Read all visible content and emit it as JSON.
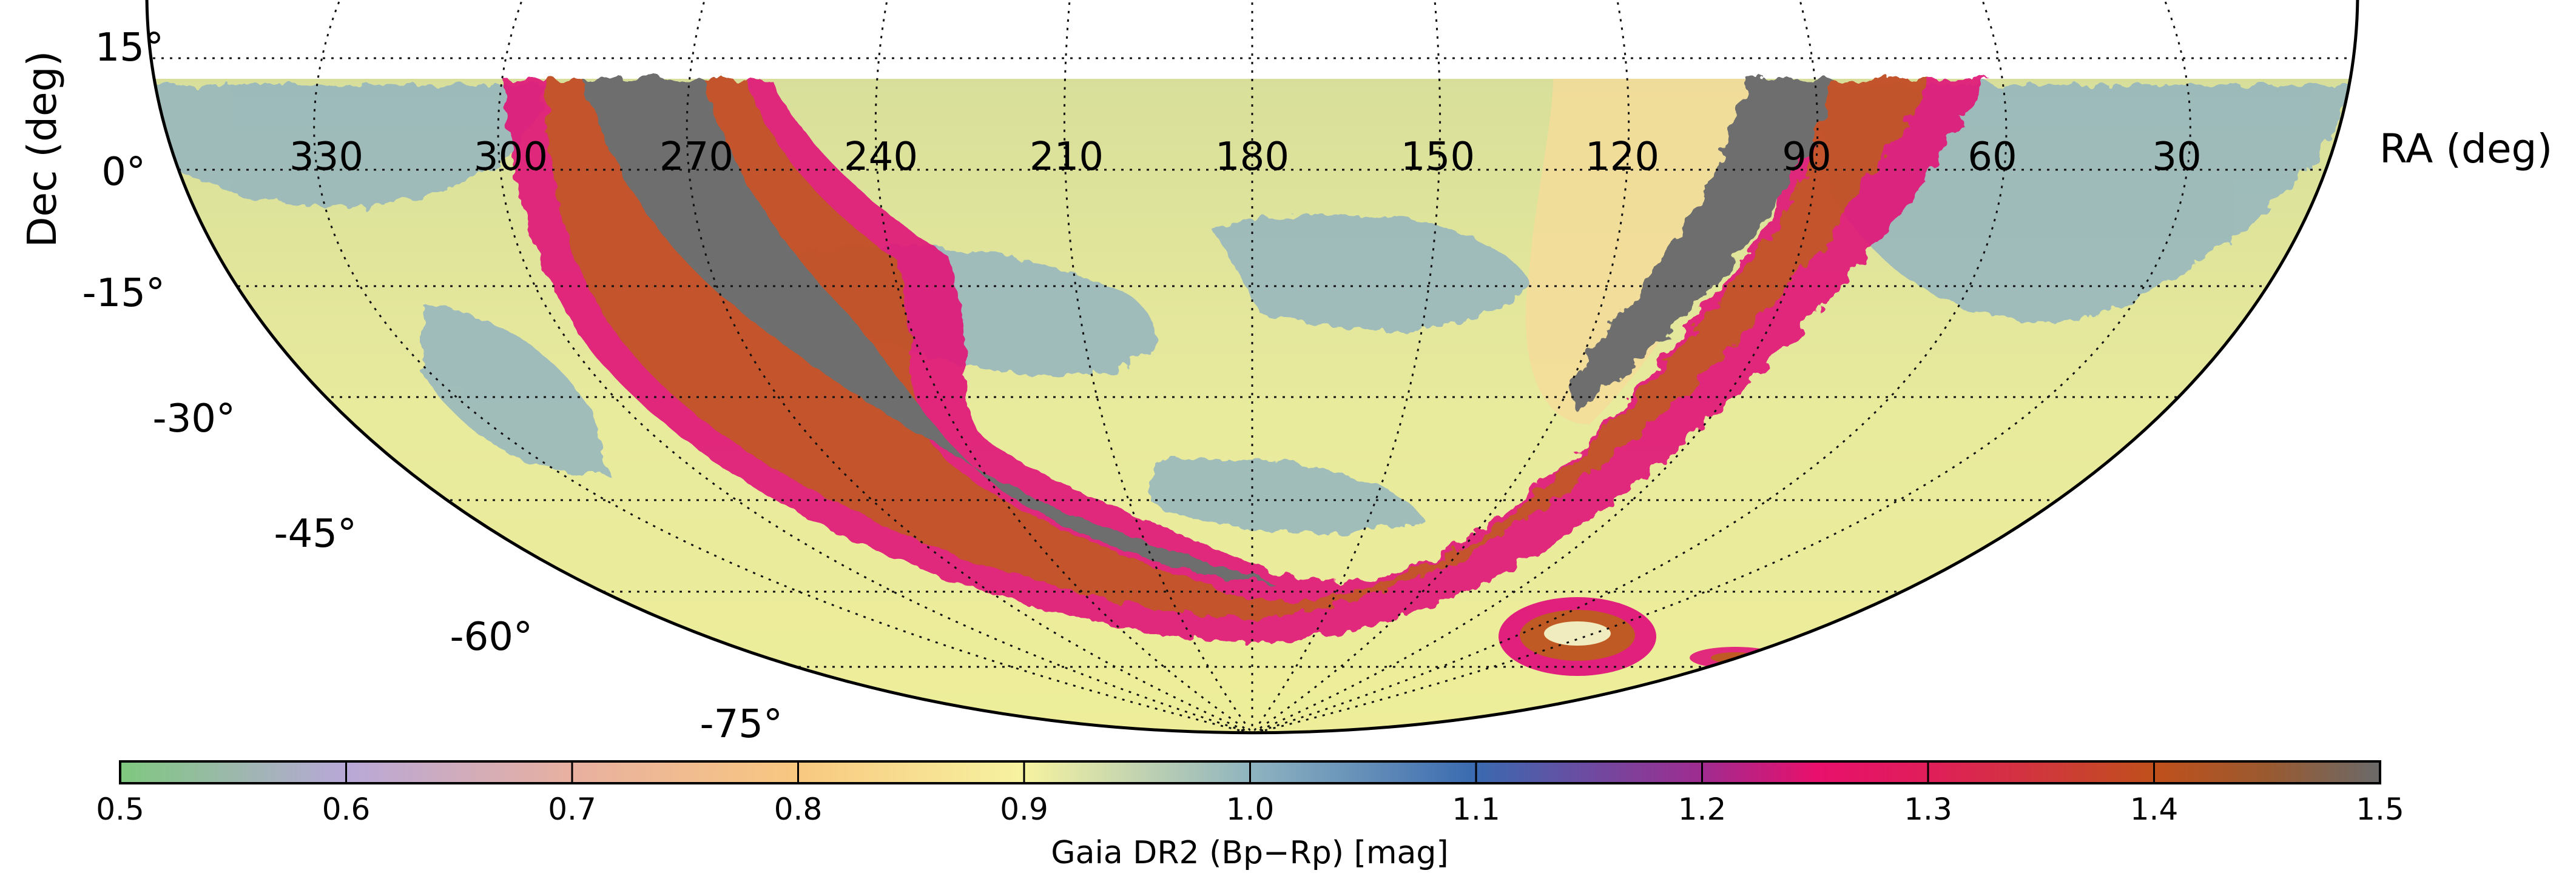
{
  "map": {
    "projection": "Aitoff (partial sky)",
    "ra_axis_label": "RA (deg)",
    "dec_axis_label": "Dec (deg)",
    "ra_ticks": [
      "330",
      "300",
      "270",
      "240",
      "210",
      "180",
      "150",
      "120",
      "90",
      "60",
      "30"
    ],
    "dec_ticks": [
      "15°",
      "0°",
      "-15°",
      "-30°",
      "-45°",
      "-60°",
      "-75°"
    ],
    "dec_coverage_deg": [
      -90,
      10
    ],
    "grid": "dotted",
    "features": [
      "galactic-plane-reddening-band",
      "large-magellanic-cloud",
      "small-magellanic-cloud"
    ]
  },
  "colorbar": {
    "label": "Gaia DR2 (Bp−Rp) [mag]",
    "range": [
      0.5,
      1.5
    ],
    "ticks": [
      "0.5",
      "0.6",
      "0.7",
      "0.8",
      "0.9",
      "1.0",
      "1.1",
      "1.2",
      "1.3",
      "1.4",
      "1.5"
    ],
    "color_stops": [
      "#7fc87f",
      "#b8a8d8",
      "#e8b0a0",
      "#f8c880",
      "#f6f3a0",
      "#8fb4c0",
      "#3a6ab0",
      "#a02c90",
      "#e8106c",
      "#c0501c",
      "#9a5a30",
      "#6a6a6a"
    ]
  }
}
